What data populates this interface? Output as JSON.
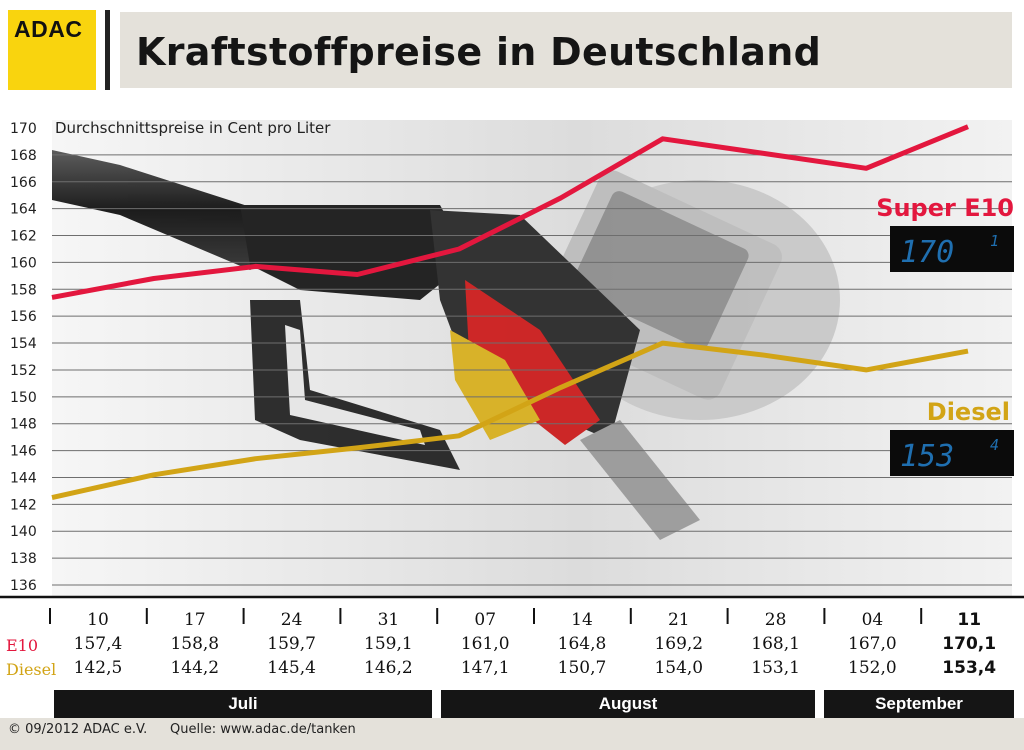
{
  "logo": {
    "text": "ADAC"
  },
  "title": "Kraftstoffpreise in Deutschland",
  "unit_label": "Durchschnittspreise in Cent pro Liter",
  "colors": {
    "e10": "#e3173e",
    "diesel": "#d2a416",
    "logo": "#f9d40e",
    "band": "#e4e1da"
  },
  "chart_data": {
    "type": "line",
    "title": "Kraftstoffpreise in Deutschland",
    "subtitle": "Durchschnittspreise in Cent pro Liter",
    "ylim": [
      136,
      170
    ],
    "yticks": [
      136,
      138,
      140,
      142,
      144,
      146,
      148,
      150,
      152,
      154,
      156,
      158,
      160,
      162,
      164,
      166,
      168,
      170
    ],
    "categories": [
      "10",
      "17",
      "24",
      "31",
      "07",
      "14",
      "21",
      "28",
      "04",
      "11"
    ],
    "months": [
      {
        "label": "Juli"
      },
      {
        "label": "August"
      },
      {
        "label": "September"
      }
    ],
    "grid": true,
    "series": [
      {
        "key": "e10",
        "name": "Super E10",
        "row_label": "E10",
        "values": [
          157.4,
          158.8,
          159.7,
          159.1,
          161.0,
          164.8,
          169.2,
          168.1,
          167.0,
          170.1
        ],
        "labels": [
          "157,4",
          "158,8",
          "159,7",
          "159,1",
          "161,0",
          "164,8",
          "169,2",
          "168,1",
          "167,0",
          "170,1"
        ],
        "display": "170",
        "display_small": "1"
      },
      {
        "key": "diesel",
        "name": "Diesel",
        "row_label": "Diesel",
        "values": [
          142.5,
          144.2,
          145.4,
          146.2,
          147.1,
          150.7,
          154.0,
          153.1,
          152.0,
          153.4
        ],
        "labels": [
          "142,5",
          "144,2",
          "145,4",
          "146,2",
          "147,1",
          "150,7",
          "154,0",
          "153,1",
          "152,0",
          "153,4"
        ],
        "display": "153",
        "display_small": "4"
      }
    ]
  },
  "footer": {
    "copyright": "© 09/2012 ADAC e.V.",
    "source": "Quelle: www.adac.de/tanken"
  }
}
